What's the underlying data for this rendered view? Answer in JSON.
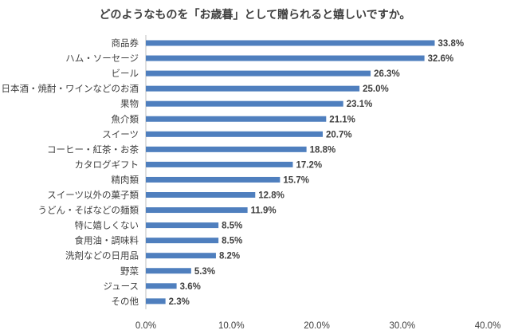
{
  "chart_data": {
    "type": "bar",
    "orientation": "horizontal",
    "title": "どのようなものを「お歳暮」として贈られると嬉しいですか。",
    "categories": [
      "商品券",
      "ハム・ソーセージ",
      "ビール",
      "日本酒・焼酎・ワインなどのお酒",
      "果物",
      "魚介類",
      "スイーツ",
      "コーヒー・紅茶・お茶",
      "カタログギフト",
      "精肉類",
      "スイーツ以外の菓子類",
      "うどん・そばなどの麺類",
      "特に嬉しくない",
      "食用油・調味料",
      "洗剤などの日用品",
      "野菜",
      "ジュース",
      "その他"
    ],
    "values": [
      33.8,
      32.6,
      26.3,
      25.0,
      23.1,
      21.1,
      20.7,
      18.8,
      17.2,
      15.7,
      12.8,
      11.9,
      8.5,
      8.5,
      8.2,
      5.3,
      3.6,
      2.3
    ],
    "value_labels": [
      "33.8%",
      "32.6%",
      "26.3%",
      "25.0%",
      "23.1%",
      "21.1%",
      "20.7%",
      "18.8%",
      "17.2%",
      "15.7%",
      "12.8%",
      "11.9%",
      "8.5%",
      "8.5%",
      "8.2%",
      "5.3%",
      "3.6%",
      "2.3%"
    ],
    "xlim": [
      0,
      40
    ],
    "xticks": [
      0,
      10,
      20,
      30,
      40
    ],
    "xtick_labels": [
      "0.0%",
      "10.0%",
      "20.0%",
      "30.0%",
      "40.0%"
    ],
    "xlabel": "",
    "ylabel": "",
    "grid": false,
    "legend": "none",
    "bar_color": "#4F7FBE",
    "text_color": "#404040",
    "axis_color": "#BFBFBF"
  }
}
